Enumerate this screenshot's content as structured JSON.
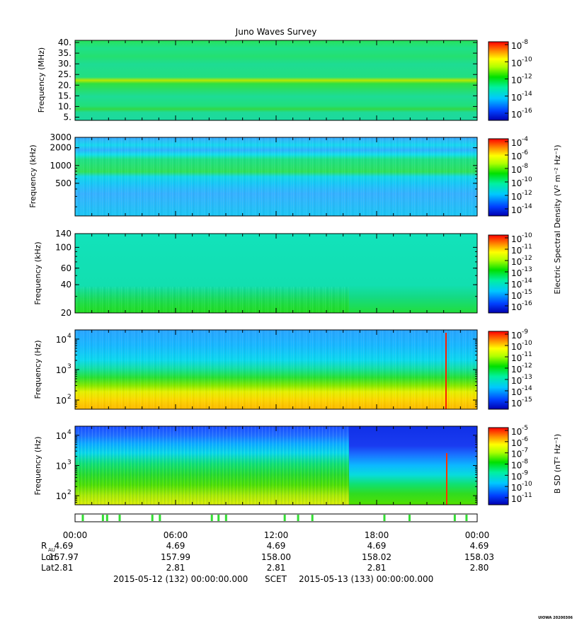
{
  "chart_data": {
    "type": "heatmap",
    "title": "Juno Waves Survey",
    "panels": [
      {
        "ylabel": "Frequency (MHz)",
        "yscale": "linear",
        "ylim": [
          3.5,
          41
        ],
        "yticks": [
          5,
          10,
          15,
          20,
          25,
          30,
          35,
          40
        ],
        "yticklabels": [
          "5.",
          "10.",
          "15.",
          "20.",
          "25.",
          "30.",
          "35.",
          "40."
        ],
        "colorbar": {
          "exponents": [
            "-8",
            "-10",
            "-12",
            "-14",
            "-16"
          ]
        }
      },
      {
        "ylabel": "Frequency (kHz)",
        "yscale": "log",
        "ylim": [
          140,
          3000
        ],
        "yticks": [
          500,
          1000,
          2000,
          3000
        ],
        "yticklabels": [
          "500",
          "1000",
          "2000",
          "3000"
        ],
        "colorbar": {
          "exponents": [
            "-4",
            "-6",
            "-8",
            "-10",
            "-12",
            "-14"
          ]
        }
      },
      {
        "ylabel": "Frequency (kHz)",
        "yscale": "log",
        "ylim": [
          20,
          140
        ],
        "yticks": [
          20,
          40,
          60,
          100,
          140
        ],
        "yticklabels": [
          "20",
          "40",
          "60",
          "100",
          "140"
        ],
        "colorbar": {
          "exponents": [
            "-10",
            "-11",
            "-12",
            "-13",
            "-14",
            "-15",
            "-16"
          ]
        }
      },
      {
        "ylabel": "Frequency (Hz)",
        "yscale": "log",
        "ylim": [
          50,
          20000
        ],
        "yticks": [
          100,
          1000,
          10000
        ],
        "yticklabels_exp": [
          "2",
          "3",
          "4"
        ],
        "colorbar": {
          "exponents": [
            "-9",
            "-10",
            "-11",
            "-12",
            "-13",
            "-14",
            "-15"
          ]
        }
      },
      {
        "ylabel": "Frequency (Hz)",
        "yscale": "log",
        "ylim": [
          50,
          20000
        ],
        "yticks": [
          100,
          1000,
          10000
        ],
        "yticklabels_exp": [
          "2",
          "3",
          "4"
        ],
        "colorbar": {
          "exponents": [
            "-5",
            "-6",
            "-7",
            "-8",
            "-9",
            "-10",
            "-11"
          ]
        }
      }
    ],
    "colorbar_labels": {
      "electric_spectral_density": "Electric Spectral Density (V² m⁻² Hz⁻¹)",
      "b_sd": "B SD (nT² Hz⁻¹)"
    },
    "x_tick_labels": [
      "00:00",
      "06:00",
      "12:00",
      "18:00",
      "00:00"
    ],
    "ephemeris": [
      {
        "label": "R",
        "sub": "AU",
        "values": [
          "4.69",
          "4.69",
          "4.69",
          "4.69",
          "4.69"
        ]
      },
      {
        "label": "Lon",
        "values": [
          "157.97",
          "157.99",
          "158.00",
          "158.02",
          "158.03"
        ]
      },
      {
        "label": "Lat",
        "values": [
          "2.81",
          "2.81",
          "2.81",
          "2.81",
          "2.80"
        ]
      }
    ],
    "time_range": {
      "start": "2015-05-12 (132) 00:00:00.000",
      "mid": "SCET",
      "end": "2015-05-13 (133) 00:00:00.000"
    },
    "mode_indicator_hours": [
      0.4,
      1.6,
      1.85,
      2.6,
      4.55,
      5.0,
      8.1,
      8.5,
      8.95,
      12.45,
      13.25,
      14.1,
      18.4,
      19.9,
      22.6,
      23.3
    ],
    "footer": "UIOWA 20200306"
  }
}
